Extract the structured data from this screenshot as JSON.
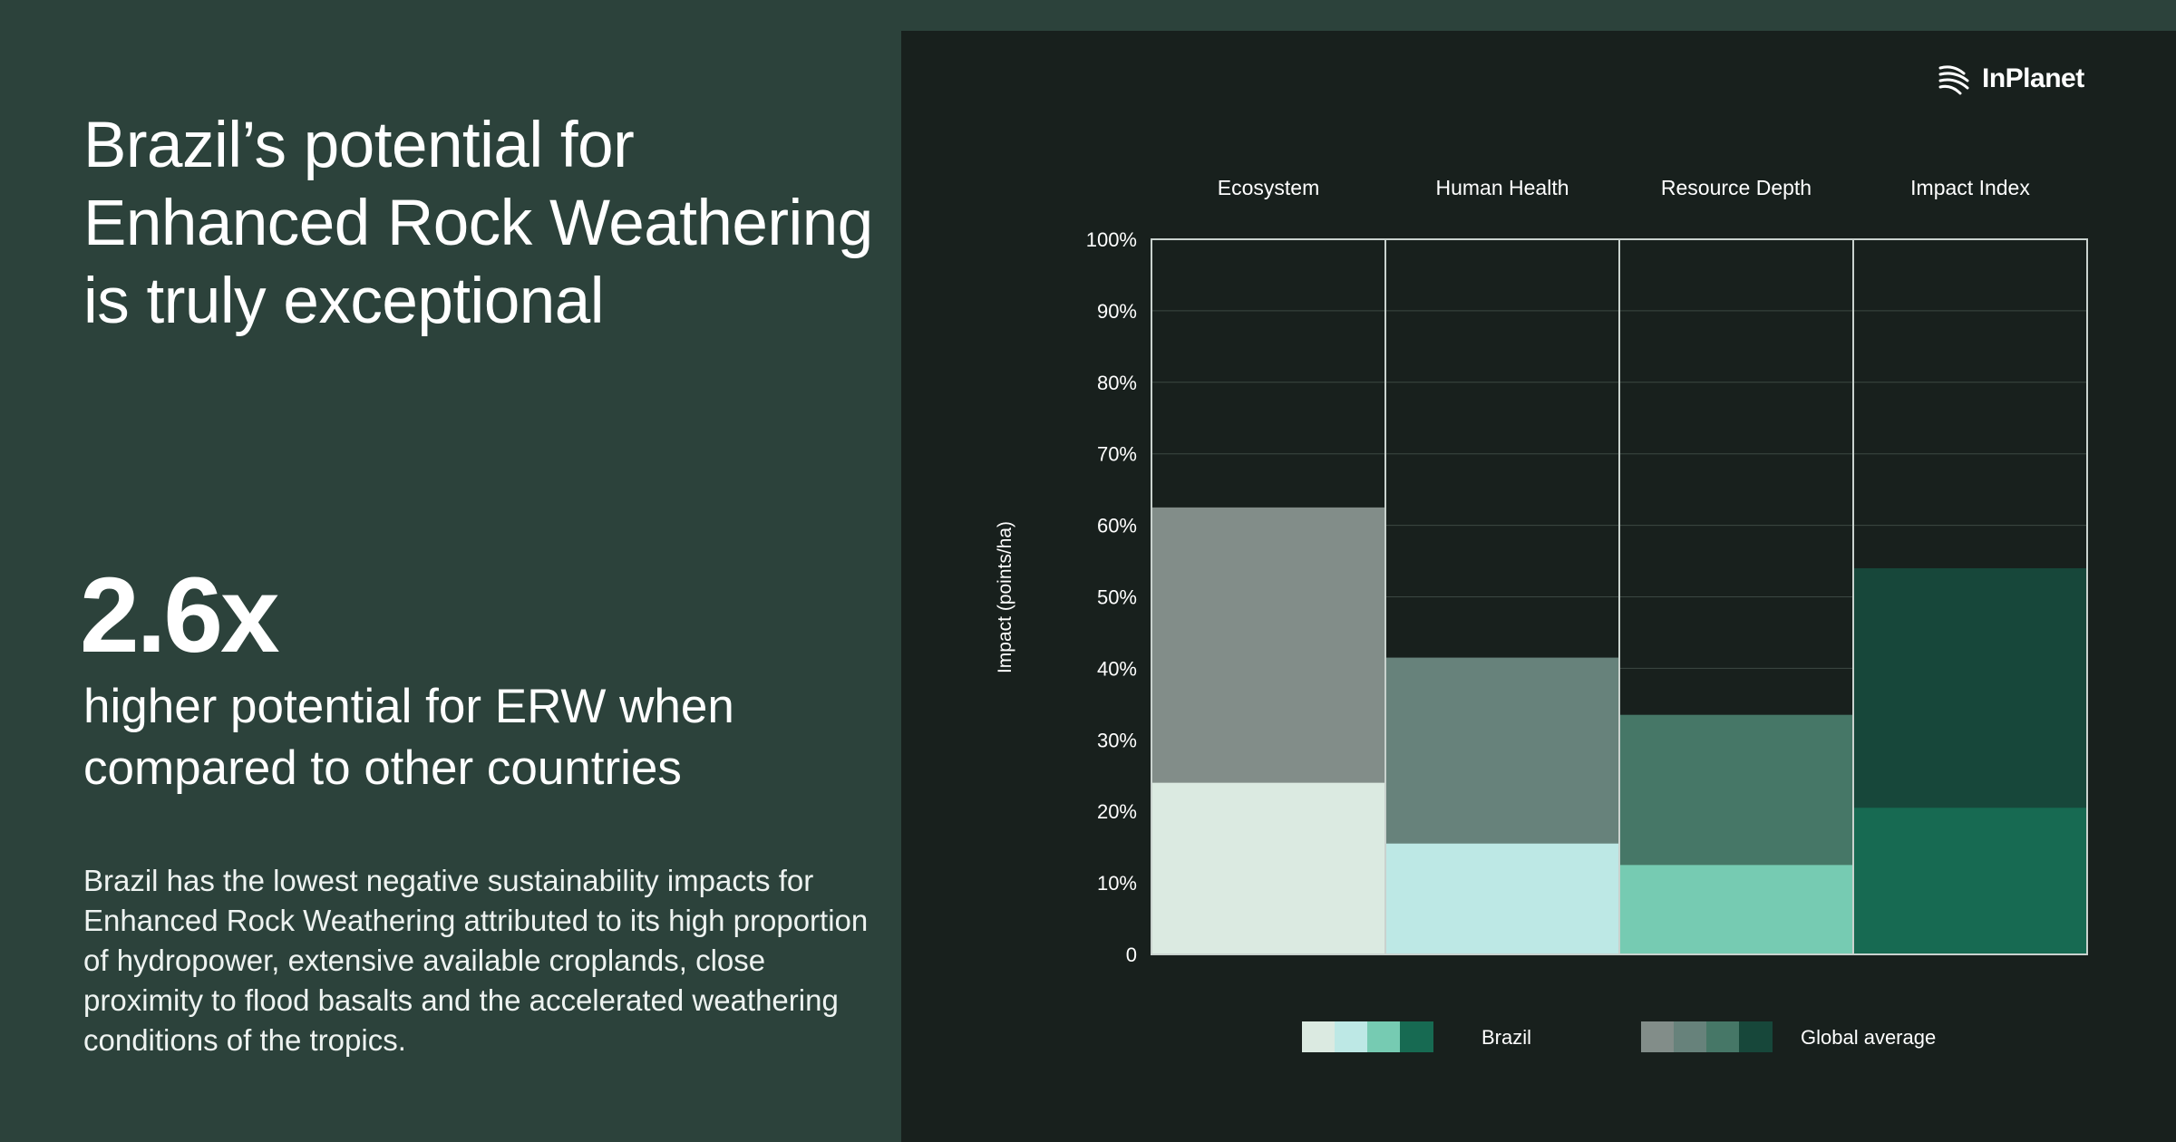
{
  "headline": "Brazil’s potential for Enhanced Rock Weathering is truly exceptional",
  "stat": {
    "value": "2.6x",
    "caption": "higher potential for ERW when compared to other countries"
  },
  "body": "Brazil has the lowest negative sustainability impacts for Enhanced Rock Weathering attributed to its high proportion of hydropower, extensive available croplands, close proximity to flood basalts and the accelerated weathering conditions of the tropics.",
  "brand": {
    "name": "InPlanet"
  },
  "chart_data": {
    "type": "bar",
    "categories": [
      "Ecosystem",
      "Human Health",
      "Resource Depth",
      "Impact Index"
    ],
    "ylabel": "Impact (points/ha)",
    "ylim": [
      0,
      100
    ],
    "yticks": [
      {
        "value": 0,
        "label": "0"
      },
      {
        "value": 10,
        "label": "10%"
      },
      {
        "value": 20,
        "label": "20%"
      },
      {
        "value": 30,
        "label": "30%"
      },
      {
        "value": 40,
        "label": "40%"
      },
      {
        "value": 50,
        "label": "50%"
      },
      {
        "value": 60,
        "label": "60%"
      },
      {
        "value": 70,
        "label": "70%"
      },
      {
        "value": 80,
        "label": "80%"
      },
      {
        "value": 90,
        "label": "90%"
      },
      {
        "value": 100,
        "label": "100%"
      }
    ],
    "grid": true,
    "legend_position": "bottom",
    "series": [
      {
        "name": "Brazil",
        "values": [
          24,
          15.5,
          12.5,
          20.5
        ],
        "colors": [
          "#dbeae1",
          "#bde8e5",
          "#76cbb2",
          "#176a52"
        ]
      },
      {
        "name": "Global average",
        "values": [
          62.5,
          41.5,
          33.5,
          54
        ],
        "colors": [
          "#828d89",
          "#67827b",
          "#467767",
          "#17473a"
        ]
      }
    ]
  }
}
